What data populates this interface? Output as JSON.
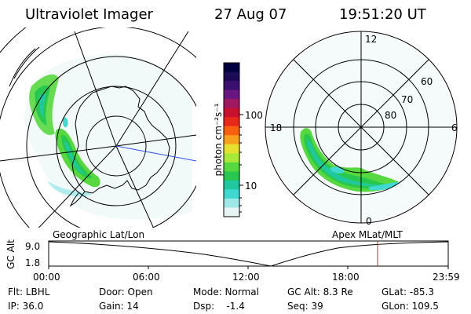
{
  "header": {
    "instrument": "Ultraviolet Imager",
    "date": "27 Aug 07",
    "time": "19:51:20 UT"
  },
  "colorbar": {
    "label": "photon cm⁻²s⁻¹",
    "ticks": [
      "100",
      "10"
    ],
    "colors": [
      "#000040",
      "#1c0a55",
      "#3a0f70",
      "#6a1680",
      "#a01860",
      "#c81030",
      "#e82818",
      "#f86010",
      "#f8a020",
      "#e8e030",
      "#a8e838",
      "#58d840",
      "#28c850",
      "#20c8a0",
      "#40d8d0",
      "#a0e8e8",
      "#e8f4f4"
    ]
  },
  "left_map": {
    "caption": "Geographic Lat/Lon",
    "accent": "#3050e0"
  },
  "right_map": {
    "caption": "Apex  MLat/MLT",
    "mlt_labels": {
      "top": "12",
      "bottom": "0",
      "left": "18",
      "right": "6"
    },
    "lat_labels": [
      "60",
      "70",
      "80"
    ]
  },
  "altitude_plot": {
    "axis_title": "GC Alt",
    "y_ticks": [
      "9.0",
      "1.8"
    ],
    "x_ticks": [
      "00:00",
      "06:00",
      "12:00",
      "18:00",
      "23:59"
    ],
    "marker_color": "#d02020"
  },
  "footer": {
    "flt": "Flt: LBHL",
    "ip": "IP: 36.0",
    "door": "Door: Open",
    "gain": "Gain: 14",
    "mode": "Mode: Normal",
    "dsp": "Dsp:    -1.4",
    "gc_alt": "GC Alt: 8.3 Re",
    "seq": "Seq: 39",
    "glat": "GLat: -85.3",
    "glon": "GLon: 109.5"
  }
}
